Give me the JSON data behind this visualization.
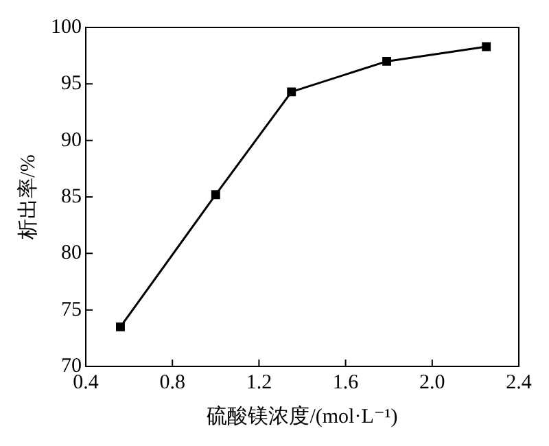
{
  "chart_data": {
    "type": "line",
    "xlabel": "硫酸镁浓度/(mol·L⁻¹)",
    "ylabel": "析出率/%",
    "x": [
      0.56,
      1.0,
      1.35,
      1.79,
      2.25
    ],
    "series": [
      {
        "color": "#000000",
        "values": [
          73.5,
          85.2,
          94.3,
          97.0,
          98.3
        ]
      }
    ],
    "xlim": [
      0.4,
      2.4
    ],
    "xticks": [
      {
        "value": 0.4,
        "label": "0.4"
      },
      {
        "value": 0.8,
        "label": "0.8"
      },
      {
        "value": 1.2,
        "label": "1.2"
      },
      {
        "value": 1.6,
        "label": "1.6"
      },
      {
        "value": 2.0,
        "label": "2.0"
      },
      {
        "value": 2.4,
        "label": "2.4"
      }
    ],
    "ylim": [
      70,
      100
    ],
    "yticks": [
      70,
      75,
      80,
      85,
      90,
      95,
      100
    ],
    "grid": false,
    "legend": false,
    "marker": "square",
    "line_style": "solid"
  }
}
